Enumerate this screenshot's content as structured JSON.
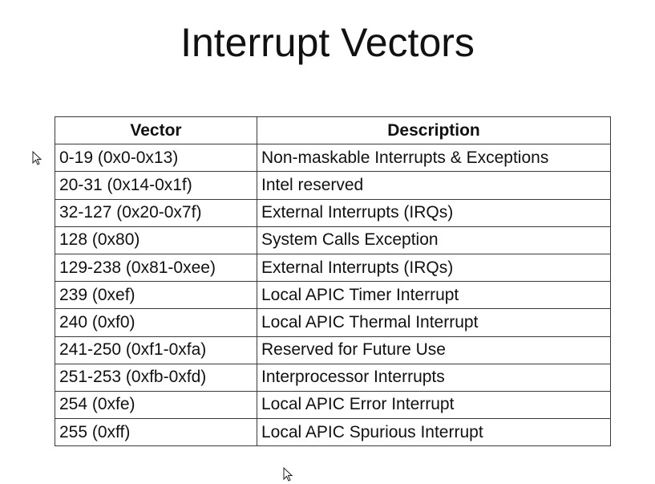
{
  "slide": {
    "title": "Interrupt Vectors"
  },
  "table": {
    "headers": {
      "vector": "Vector",
      "description": "Description"
    },
    "rows": [
      {
        "vector": "0-19 (0x0-0x13)",
        "description": "Non-maskable Interrupts & Exceptions"
      },
      {
        "vector": "20-31 (0x14-0x1f)",
        "description": "Intel reserved"
      },
      {
        "vector": "32-127 (0x20-0x7f)",
        "description": "External Interrupts (IRQs)"
      },
      {
        "vector": "128 (0x80)",
        "description": "System Calls Exception"
      },
      {
        "vector": "129-238 (0x81-0xee)",
        "description": "External Interrupts (IRQs)"
      },
      {
        "vector": "239 (0xef)",
        "description": "Local APIC Timer Interrupt"
      },
      {
        "vector": "240 (0xf0)",
        "description": "Local APIC Thermal Interrupt"
      },
      {
        "vector": "241-250 (0xf1-0xfa)",
        "description": "Reserved for Future Use"
      },
      {
        "vector": "251-253 (0xfb-0xfd)",
        "description": "Interprocessor Interrupts"
      },
      {
        "vector": "254 (0xfe)",
        "description": "Local APIC Error Interrupt"
      },
      {
        "vector": "255 (0xff)",
        "description": "Local APIC Spurious Interrupt"
      }
    ]
  },
  "icons": {
    "cursor": "mouse-pointer-icon"
  }
}
